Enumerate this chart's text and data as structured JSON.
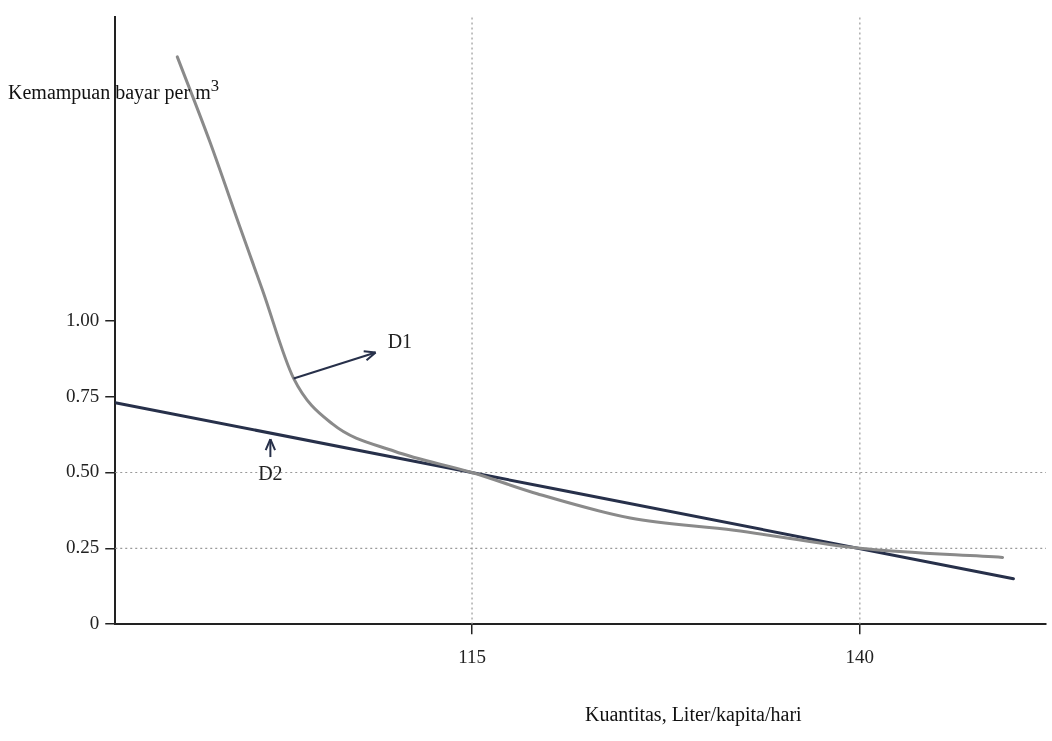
{
  "chart_data": {
    "type": "line",
    "xlabel": "Kuantitas, Liter/kapita/hari",
    "ylabel": "Kemampuan bayar per m$^{3}$",
    "xlim": [
      92,
      152
    ],
    "xticks": [
      115,
      140
    ],
    "ylim": [
      0,
      2
    ],
    "yticks": [
      0,
      {
        "value": 0.25,
        "label": "0.25"
      },
      {
        "value": 0.5,
        "label": "0.50"
      },
      {
        "value": 0.75,
        "label": "0.75"
      },
      {
        "value": 1,
        "label": "1.00"
      }
    ],
    "series": [
      {
        "color": "#8a8a8a",
        "x": [
          96,
          98.1,
          100.1,
          101.5,
          103.5,
          106,
          110,
          115,
          119.2,
          125.2,
          131.9,
          140,
          149.2
        ],
        "values": [
          1.87,
          1.59,
          1.3,
          1.1,
          0.81,
          0.66,
          0.57,
          0.5,
          0.43,
          0.35,
          0.31,
          0.25,
          0.22
        ]
      },
      {
        "color": "#27304a",
        "x": [
          92,
          149.9
        ],
        "values": [
          0.73,
          0.15
        ]
      }
    ],
    "ref_lines": [
      {
        "axis": "x",
        "value": 115,
        "color": "#999999",
        "line_style": "dotted"
      },
      {
        "axis": "x",
        "value": 140,
        "color": "#999999",
        "line_style": "dotted"
      },
      {
        "axis": "y",
        "value": 0.5,
        "color": "#999999",
        "line_style": "dotted"
      },
      {
        "axis": "y",
        "value": 0.25,
        "color": "#999999",
        "line_style": "dotted"
      }
    ],
    "annotations": [
      {
        "text": "D1",
        "x": 103.5,
        "y": 0.81
      },
      {
        "text": "D2",
        "x": 102,
        "y": 0.63
      }
    ],
    "marker": "none",
    "line_style": "solid",
    "grid": false,
    "legend": false
  }
}
